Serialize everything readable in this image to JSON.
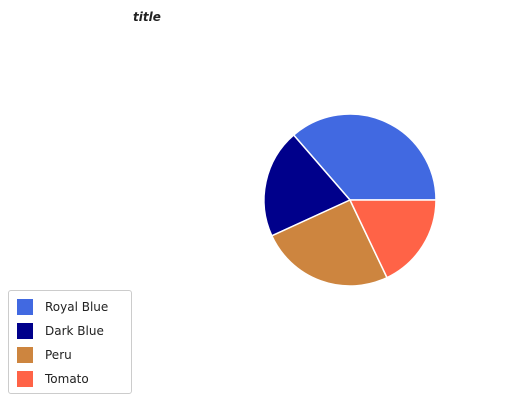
{
  "chart_data": {
    "type": "pie",
    "title": "title",
    "categories": [
      "Royal Blue",
      "Dark Blue",
      "Peru",
      "Tomato"
    ],
    "values": [
      34.3,
      19.3,
      23.8,
      16.9
    ],
    "colors": [
      "#4169e1",
      "#00008b",
      "#cd853f",
      "#ff6347"
    ],
    "start_angle_deg": 0,
    "legend_position": "bottom-left"
  }
}
